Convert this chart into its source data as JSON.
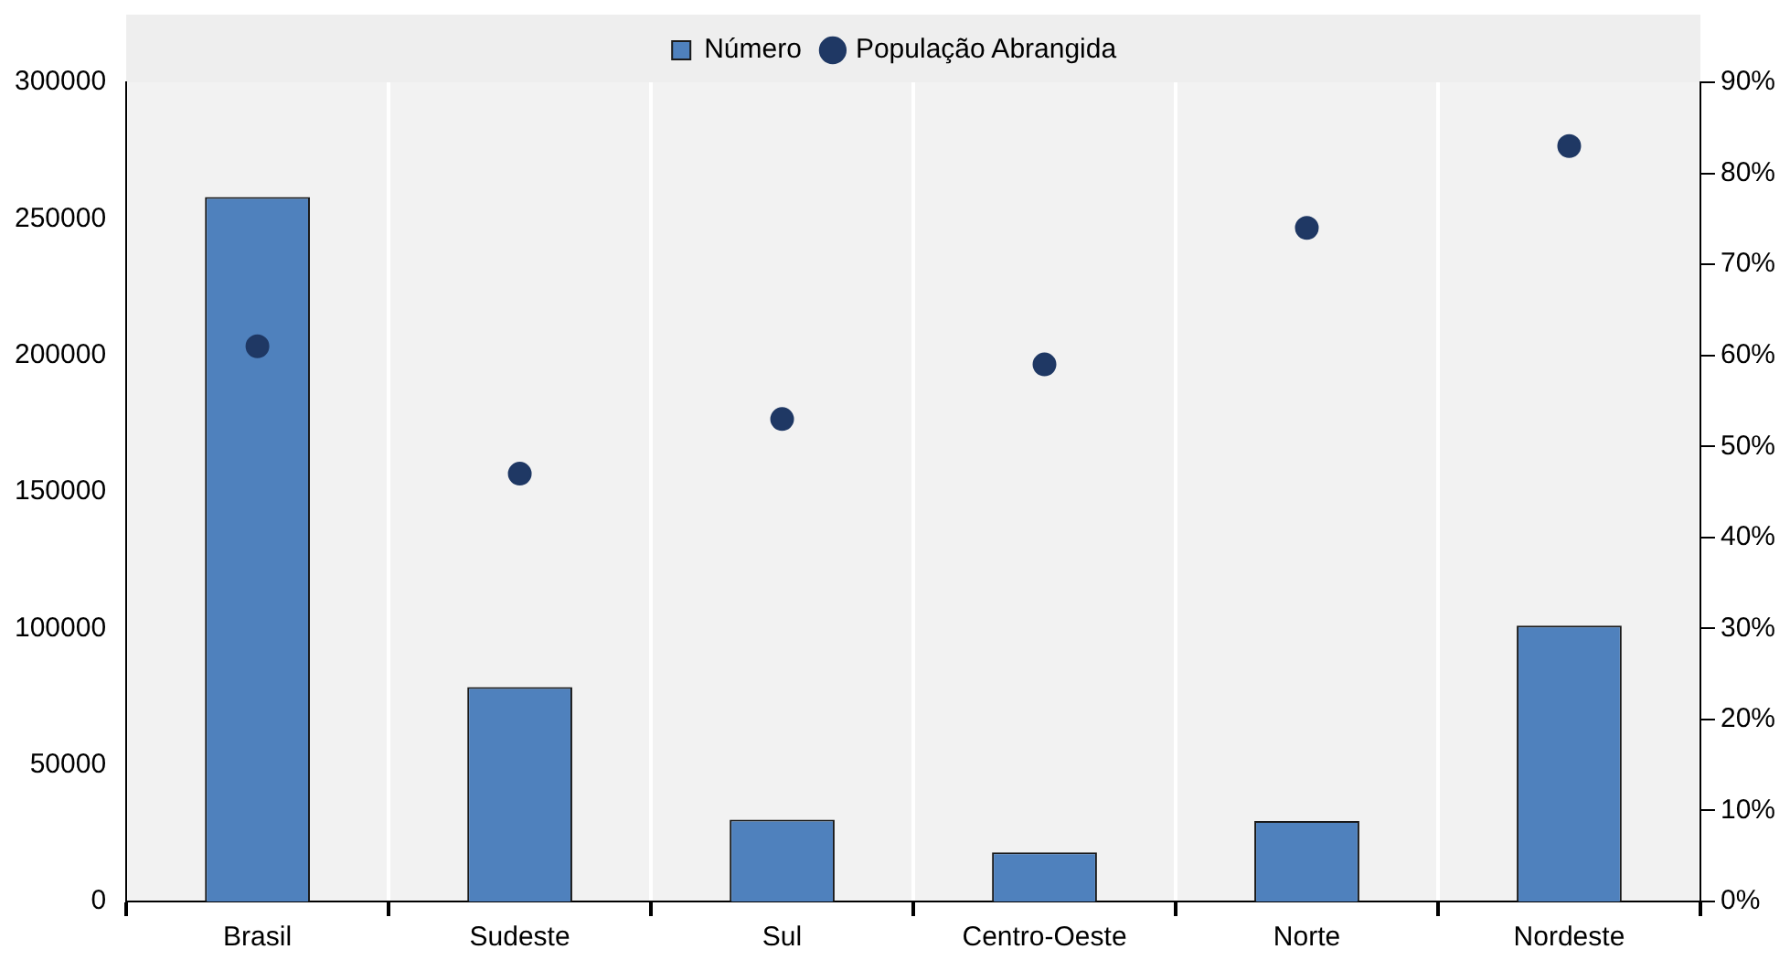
{
  "chart_data": {
    "type": "bar",
    "categories": [
      "Brasil",
      "Sudeste",
      "Sul",
      "Centro-Oeste",
      "Norte",
      "Nordeste"
    ],
    "series": [
      {
        "name": "Número",
        "color": "#4f81bd",
        "values": [
          258000,
          78500,
          30000,
          18000,
          29500,
          101000
        ]
      },
      {
        "name": "População Abrangida",
        "type": "scatter",
        "axis": "y2",
        "color": "#1f3864",
        "values": [
          61,
          47,
          53,
          59,
          74,
          83
        ]
      }
    ],
    "ylim": [
      0,
      300000
    ],
    "yticks": [
      0,
      50000,
      100000,
      150000,
      200000,
      250000,
      300000
    ],
    "y2lim": [
      0,
      90
    ],
    "y2ticks": [
      {
        "value": 0,
        "label": "0%"
      },
      {
        "value": 10,
        "label": "10%"
      },
      {
        "value": 20,
        "label": "20%"
      },
      {
        "value": 30,
        "label": "30%"
      },
      {
        "value": 40,
        "label": "40%"
      },
      {
        "value": 50,
        "label": "50%"
      },
      {
        "value": 60,
        "label": "60%"
      },
      {
        "value": 70,
        "label": "70%"
      },
      {
        "value": 80,
        "label": "80%"
      },
      {
        "value": 90,
        "label": "90%"
      }
    ],
    "grid": "x",
    "legend": "top",
    "marker": "circle"
  }
}
